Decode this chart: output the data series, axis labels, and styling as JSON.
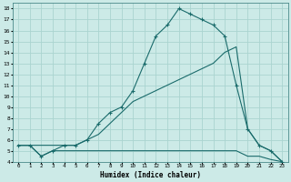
{
  "xlabel": "Humidex (Indice chaleur)",
  "bg_color": "#cceae7",
  "grid_color": "#aad4d0",
  "line_color": "#1a6b6b",
  "series": [
    {
      "x": [
        0,
        1,
        2,
        3,
        4,
        5,
        6,
        7,
        8,
        9,
        10,
        11,
        12,
        13,
        14,
        15,
        16,
        17,
        18,
        19,
        20,
        21,
        22,
        23
      ],
      "y": [
        5.5,
        5.5,
        4.5,
        5.0,
        5.0,
        5.0,
        5.0,
        5.0,
        5.0,
        5.0,
        5.0,
        5.0,
        5.0,
        5.0,
        5.0,
        5.0,
        5.0,
        5.0,
        5.0,
        5.0,
        4.5,
        4.5,
        4.2,
        4.0
      ],
      "marker": false
    },
    {
      "x": [
        0,
        1,
        2,
        3,
        4,
        5,
        6,
        7,
        8,
        9,
        10,
        11,
        12,
        13,
        14,
        15,
        16,
        17,
        18,
        19,
        20,
        21,
        22,
        23
      ],
      "y": [
        5.5,
        5.5,
        5.5,
        5.5,
        5.5,
        5.5,
        6.0,
        6.5,
        7.5,
        8.5,
        9.5,
        10.0,
        10.5,
        11.0,
        11.5,
        12.0,
        12.5,
        13.0,
        14.0,
        14.5,
        7.0,
        5.5,
        5.0,
        4.0
      ],
      "marker": false
    },
    {
      "x": [
        0,
        1,
        2,
        3,
        4,
        5,
        6,
        7,
        8,
        9,
        10,
        11,
        12,
        13,
        14,
        15,
        16,
        17,
        18,
        19,
        20,
        21,
        22,
        23
      ],
      "y": [
        5.5,
        5.5,
        4.5,
        5.0,
        5.5,
        5.5,
        6.0,
        7.5,
        8.5,
        9.0,
        10.5,
        13.0,
        15.5,
        16.5,
        18.0,
        17.5,
        17.0,
        16.5,
        15.5,
        11.0,
        7.0,
        5.5,
        5.0,
        4.0
      ],
      "marker": true
    }
  ],
  "xlim": [
    -0.5,
    23.5
  ],
  "ylim": [
    4,
    18.5
  ],
  "yticks": [
    4,
    5,
    6,
    7,
    8,
    9,
    10,
    11,
    12,
    13,
    14,
    15,
    16,
    17,
    18
  ],
  "xticks": [
    0,
    1,
    2,
    3,
    4,
    5,
    6,
    7,
    8,
    9,
    10,
    11,
    12,
    13,
    14,
    15,
    16,
    17,
    18,
    19,
    20,
    21,
    22,
    23
  ],
  "xtick_labels": [
    "0",
    "1",
    "2",
    "3",
    "4",
    "5",
    "6",
    "7",
    "8",
    "9",
    "10",
    "11",
    "12",
    "13",
    "14",
    "15",
    "16",
    "17",
    "18",
    "19",
    "20",
    "21",
    "22",
    "23"
  ]
}
